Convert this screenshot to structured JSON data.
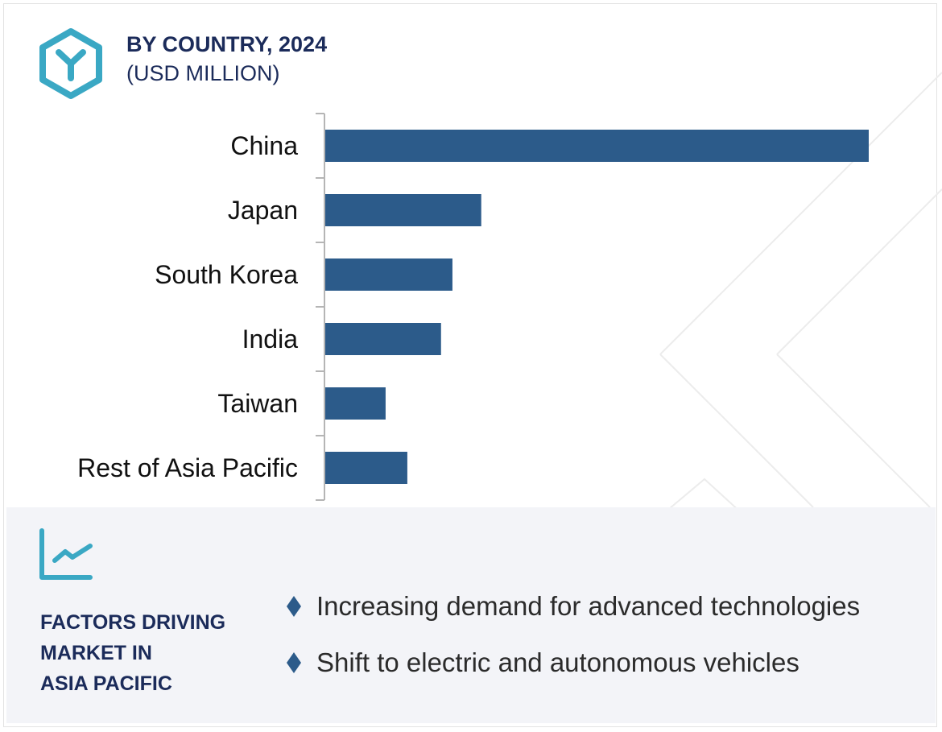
{
  "header": {
    "title": "BY COUNTRY, 2024",
    "subtitle": "(USD MILLION)",
    "logo_icon": "hexagon-y-logo-icon"
  },
  "colors": {
    "bar": "#2c5b8a",
    "accent": "#3aa8c4",
    "title": "#1b2b5a",
    "panel": "#f3f4f8"
  },
  "chart_data": {
    "type": "bar",
    "orientation": "horizontal",
    "title": "BY COUNTRY, 2024",
    "subtitle": "(USD MILLION)",
    "categories": [
      "China",
      "Japan",
      "South Korea",
      "India",
      "Taiwan",
      "Rest of Asia Pacific"
    ],
    "values": [
      100,
      28.7,
      23.4,
      21.3,
      11.1,
      15.1
    ],
    "note": "values relative (China = 100); no value axis shown",
    "xlabel": "",
    "ylabel": "",
    "xlim": [
      0,
      100
    ],
    "grid": false
  },
  "factors": {
    "heading_lines": [
      "FACTORS DRIVING",
      "MARKET IN",
      "ASIA PACIFIC"
    ],
    "items": [
      "Increasing demand for advanced technologies",
      "Shift to electric and autonomous vehicles"
    ]
  }
}
